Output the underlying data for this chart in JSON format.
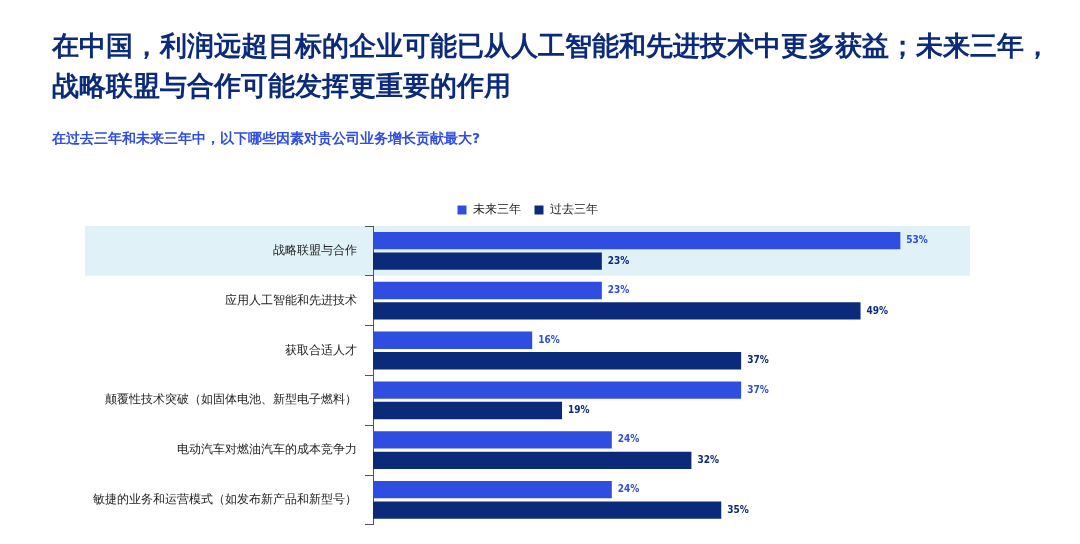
{
  "chart_data": {
    "type": "bar",
    "orientation": "horizontal",
    "title": "在中国，利润远超目标的企业可能已从人工智能和先进技术中更多获益；未来三年，战略联盟与合作可能发挥更重要的作用",
    "subtitle": "在过去三年和未来三年中，以下哪些因素对贵公司业务增长贡献最大?",
    "categories": [
      "战略联盟与合作",
      "应用人工智能和先进技术",
      "获取合适人才",
      "颠覆性技术突破（如固体电池、新型电子燃料）",
      "电动汽车对燃油汽车的成本竞争力",
      "敏捷的业务和运营模式（如发布新产品和新型号）"
    ],
    "series": [
      {
        "name": "未来三年",
        "color": "#2f4de0",
        "values": [
          53,
          23,
          16,
          37,
          24,
          24
        ],
        "value_labels": [
          "53%",
          "23%",
          "16%",
          "37%",
          "24%",
          "24%"
        ]
      },
      {
        "name": "过去三年",
        "color": "#0b2a7a",
        "values": [
          23,
          49,
          37,
          19,
          32,
          35
        ],
        "value_labels": [
          "23%",
          "49%",
          "37%",
          "19%",
          "32%",
          "35%"
        ]
      }
    ],
    "bands": [
      {
        "axis": "y",
        "from": "战略联盟与合作",
        "to": "战略联盟与合作",
        "color": "#e0f2f8"
      }
    ],
    "legend": "top"
  }
}
